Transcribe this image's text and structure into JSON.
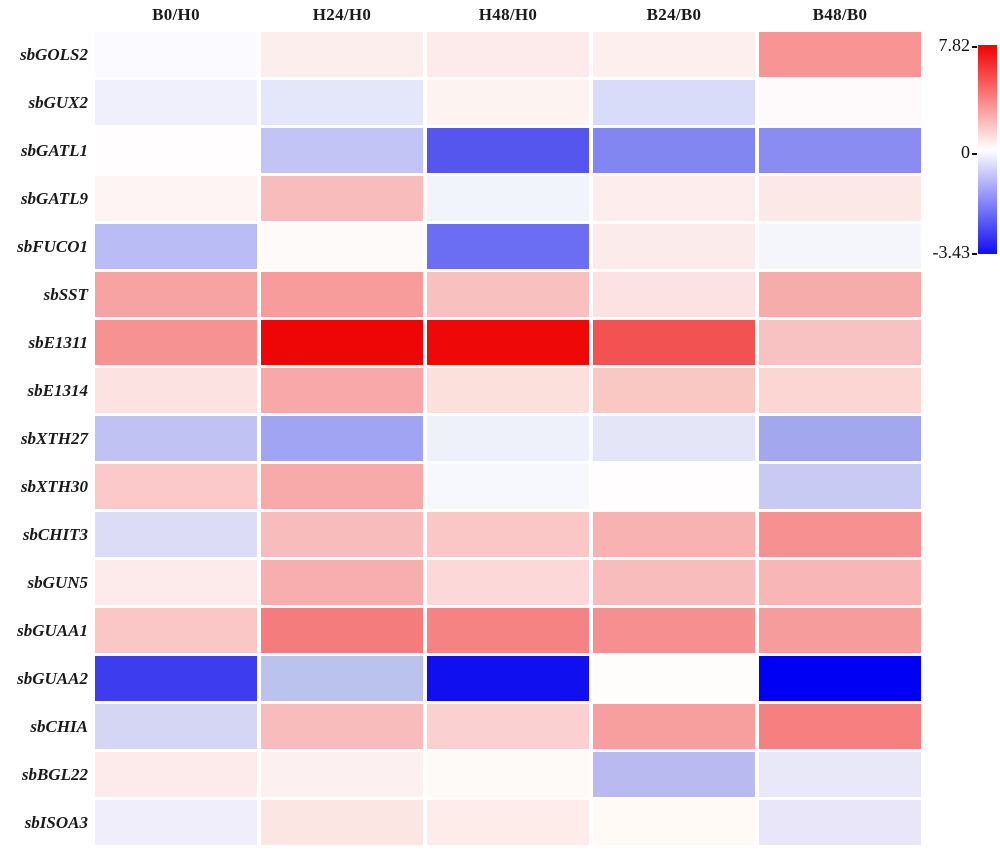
{
  "chart_data": {
    "type": "heatmap",
    "title": "",
    "xlabel": "",
    "ylabel": "",
    "legend_position": "right",
    "grid": false,
    "columns": [
      "B0/H0",
      "H24/H0",
      "H48/H0",
      "B24/B0",
      "B48/B0"
    ],
    "rows": [
      "sbGOLS2",
      "sbGUX2",
      "sbGATL1",
      "sbGATL9",
      "sbFUCO1",
      "sbSST",
      "sbE1311",
      "sbE1314",
      "sbXTH27",
      "sbXTH30",
      "sbCHIT3",
      "sbGUN5",
      "sbGUAA1",
      "sbGUAA2",
      "sbCHIA",
      "sbBGL22",
      "sbISOA3"
    ],
    "values": [
      [
        -0.1,
        0.5,
        0.65,
        0.5,
        3.3
      ],
      [
        -0.2,
        -0.35,
        0.3,
        -0.5,
        0.1
      ],
      [
        0.05,
        -0.8,
        -2.3,
        -1.7,
        -1.6
      ],
      [
        0.3,
        2.05,
        -0.15,
        0.55,
        0.7
      ],
      [
        -0.95,
        0.15,
        -2.0,
        0.6,
        -0.15
      ],
      [
        2.8,
        3.1,
        1.9,
        0.9,
        2.5
      ],
      [
        3.3,
        7.8,
        7.7,
        5.3,
        1.9
      ],
      [
        0.9,
        2.7,
        0.95,
        1.8,
        1.25
      ],
      [
        -0.85,
        -1.3,
        -0.25,
        -0.35,
        -1.25
      ],
      [
        1.65,
        2.65,
        -0.1,
        0.05,
        -0.75
      ],
      [
        -0.4,
        2.05,
        1.75,
        2.35,
        3.4
      ],
      [
        0.65,
        2.55,
        1.2,
        2.05,
        2.2
      ],
      [
        1.75,
        4.0,
        3.95,
        3.4,
        3.0
      ],
      [
        -2.9,
        -0.9,
        -3.25,
        0.05,
        -3.43
      ],
      [
        -0.55,
        2.05,
        1.4,
        2.95,
        4.05
      ],
      [
        0.65,
        0.45,
        0.15,
        -0.95,
        -0.3
      ],
      [
        -0.2,
        0.75,
        0.6,
        0.1,
        -0.3
      ]
    ],
    "cell_colors": [
      [
        "#fafaff",
        "#fdeeee",
        "#fdeaea",
        "#fdefed",
        "#f89494"
      ],
      [
        "#f0f0fc",
        "#e4e6fa",
        "#fdf4f2",
        "#d8dcf8",
        "#fefafc"
      ],
      [
        "#fffdfd",
        "#c2c4f6",
        "#5456ee",
        "#8286f0",
        "#8a8cf2"
      ],
      [
        "#fef4f4",
        "#f9bcbc",
        "#f2f4fc",
        "#fdeded",
        "#fde8e8"
      ],
      [
        "#babcf6",
        "#fffafa",
        "#6b6ef2",
        "#fcebeb",
        "#f5f5fc"
      ],
      [
        "#f8a3a3",
        "#f89b9b",
        "#f9c0c0",
        "#fce2e2",
        "#f7acac"
      ],
      [
        "#f79292",
        "#ee0505",
        "#ee0808",
        "#f25252",
        "#f9c2c2"
      ],
      [
        "#fde2e2",
        "#f8a8a8",
        "#fce0dc",
        "#f9c8c2",
        "#fcd6d2"
      ],
      [
        "#c0c2f4",
        "#a0a4f2",
        "#eef0fa",
        "#e4e6f8",
        "#a3a7ee"
      ],
      [
        "#fbc9c9",
        "#f8a9a9",
        "#f6f8fd",
        "#fffdfd",
        "#c8caf4"
      ],
      [
        "#dcdcf6",
        "#f9bcbc",
        "#fbc6c6",
        "#f9b2b2",
        "#f79090"
      ],
      [
        "#fdeaea",
        "#f8aeae",
        "#fcd8d8",
        "#f9bcbc",
        "#f9b6b6"
      ],
      [
        "#fbc6c6",
        "#f47c7c",
        "#f68383",
        "#f69090",
        "#f79c9c"
      ],
      [
        "#3d3def",
        "#bcc2ee",
        "#0f0fef",
        "#fffcfc",
        "#0000f5"
      ],
      [
        "#d4d6f4",
        "#f9bcbc",
        "#fbd0d0",
        "#f79f9f",
        "#f67f7f"
      ],
      [
        "#fdeaea",
        "#fdf0f0",
        "#fefaf8",
        "#b8baf0",
        "#e8e8f8"
      ],
      [
        "#f0eefa",
        "#fce6e4",
        "#fdecea",
        "#fffaf5",
        "#e8e6f8"
      ]
    ],
    "colorbar": {
      "max": 7.82,
      "mid": 0,
      "min": -3.43,
      "max_label": "7.82",
      "mid_label": "0",
      "min_label": "-3.43",
      "top_color": "#f20000",
      "mid_color": "#ffffff",
      "bottom_color": "#0f0ff2"
    }
  }
}
